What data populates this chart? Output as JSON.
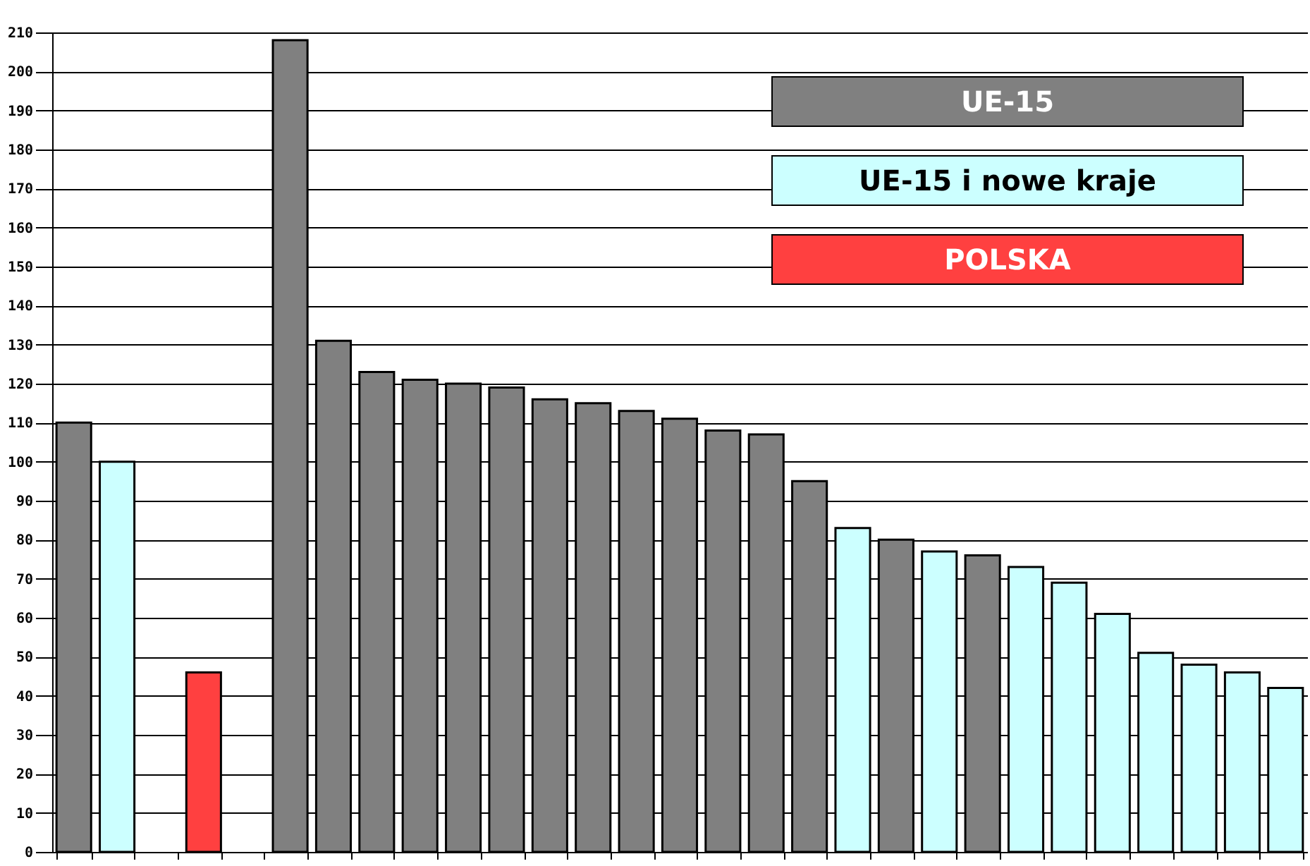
{
  "chart_data": {
    "type": "bar",
    "categories": [
      null,
      null,
      null,
      null,
      null,
      null,
      null,
      null,
      null,
      null,
      null,
      null,
      null,
      null,
      null,
      null,
      null,
      null,
      null,
      null,
      null,
      null,
      null,
      null,
      null,
      null,
      null,
      null,
      null
    ],
    "series": [
      {
        "name": "UE-15",
        "color": "#808080",
        "values": [
          110,
          null,
          null,
          null,
          null,
          208,
          131,
          123,
          121,
          120,
          119,
          116,
          115,
          113,
          111,
          108,
          107,
          95,
          null,
          80,
          null,
          76,
          null,
          null,
          null,
          null,
          null,
          null,
          null
        ]
      },
      {
        "name": "UE-15 i nowe kraje",
        "color": "#ccffff",
        "values": [
          null,
          100,
          null,
          null,
          null,
          null,
          null,
          null,
          null,
          null,
          null,
          null,
          null,
          null,
          null,
          null,
          null,
          null,
          83,
          null,
          77,
          null,
          73,
          69,
          61,
          51,
          48,
          46,
          42
        ]
      },
      {
        "name": "POLSKA",
        "color": "#ff4040",
        "values": [
          null,
          null,
          null,
          46,
          null,
          null,
          null,
          null,
          null,
          null,
          null,
          null,
          null,
          null,
          null,
          null,
          null,
          null,
          null,
          null,
          null,
          null,
          null,
          null,
          null,
          null,
          null,
          null,
          null
        ]
      }
    ],
    "ylim": [
      0,
      210
    ],
    "yticks": [
      0,
      10,
      20,
      30,
      40,
      50,
      60,
      70,
      80,
      90,
      100,
      110,
      120,
      130,
      140,
      150,
      160,
      170,
      180,
      190,
      200,
      210
    ],
    "grid": "y",
    "legend": "top right",
    "tick_labels": "y"
  }
}
